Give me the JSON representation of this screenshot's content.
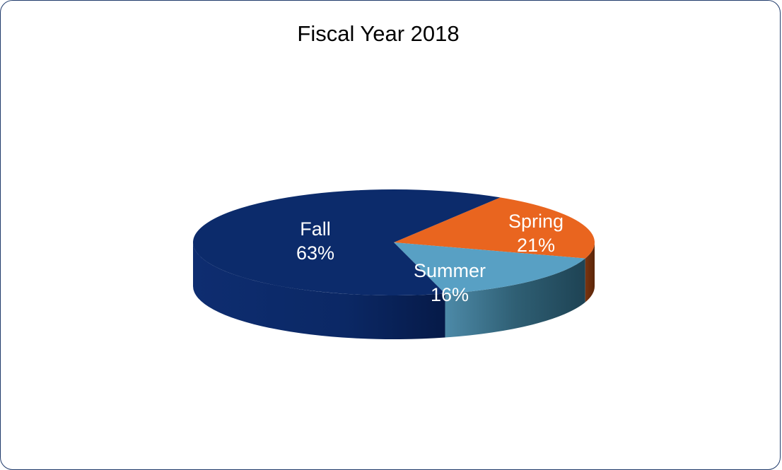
{
  "chart_data": {
    "type": "pie",
    "title": "Fiscal Year 2018",
    "three_d": true,
    "categories": [
      "Fall",
      "Spring",
      "Summer"
    ],
    "values": [
      63,
      21,
      16
    ],
    "labels": [
      {
        "name": "Fall",
        "percent": "63%"
      },
      {
        "name": "Spring",
        "percent": "21%"
      },
      {
        "name": "Summer",
        "percent": "16%"
      }
    ],
    "colors": {
      "Fall": "#0c2b6b",
      "Spring": "#e9651f",
      "Summer": "#58a0c4"
    },
    "legend": "none"
  }
}
